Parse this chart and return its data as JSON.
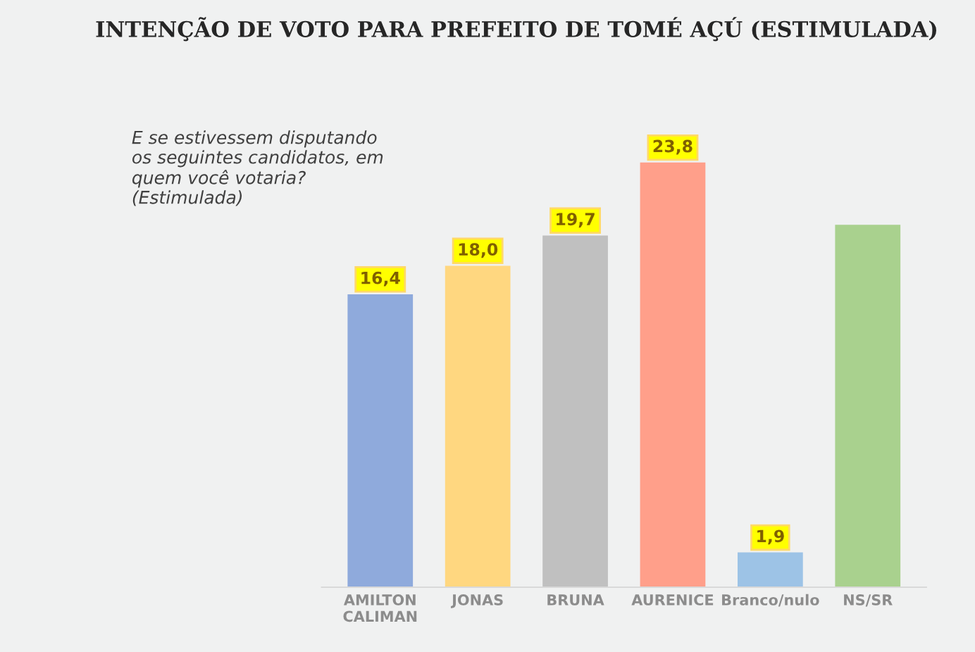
{
  "chart_data": {
    "type": "bar",
    "title": "INTENÇÃO DE VOTO PARA PREFEITO DE TOMÉ AÇÚ (ESTIMULADA)",
    "categories": [
      "AMILTON\nCALIMAN",
      "JONAS",
      "BRUNA",
      "AURENICE",
      "Branco/nulo",
      "NS/SR"
    ],
    "values": [
      16.4,
      18.0,
      19.7,
      23.8,
      1.9,
      20.3
    ],
    "colors": [
      "#8faadc",
      "#ffd780",
      "#c0c0c0",
      "#ff9f8a",
      "#9dc3e6",
      "#a9d18e"
    ],
    "value_labels": [
      "16,4",
      "18,0",
      "19,7",
      "23,8",
      "1,9",
      null
    ],
    "annotations": [
      "E se estivessem disputando\nos seguintes candidatos, em\nquem você votaria?\n(Estimulada)"
    ],
    "grid": false,
    "legend": false
  }
}
